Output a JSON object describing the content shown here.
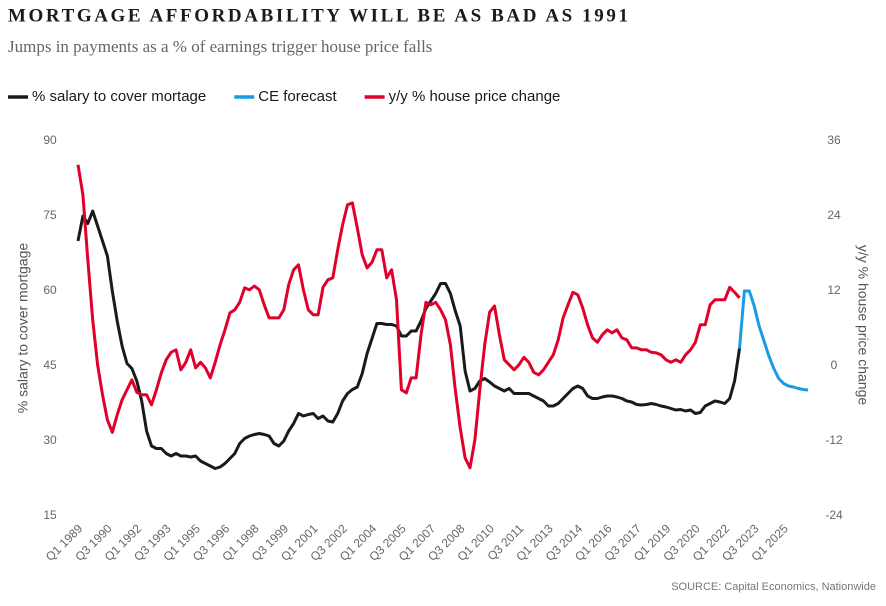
{
  "chart_data": {
    "type": "line",
    "title": "MORTGAGE AFFORDABILITY WILL BE AS BAD AS 1991",
    "subtitle": "Jumps in payments as a % of earnings trigger house price falls",
    "ylabel": "% salary to cover mortgage",
    "y2label": "y/y % house price change",
    "source": "SOURCE: Capital Economics, Nationwide",
    "categories": [
      "Q1 1989",
      null,
      null,
      null,
      null,
      null,
      "Q3 1990",
      null,
      null,
      null,
      null,
      null,
      "Q1 1992",
      null,
      null,
      null,
      null,
      null,
      "Q3 1993",
      null,
      null,
      null,
      null,
      null,
      "Q1 1995",
      null,
      null,
      null,
      null,
      null,
      "Q3 1996",
      null,
      null,
      null,
      null,
      null,
      "Q1 1998",
      null,
      null,
      null,
      null,
      null,
      "Q3 1999",
      null,
      null,
      null,
      null,
      null,
      "Q1 2001",
      null,
      null,
      null,
      null,
      null,
      "Q3 2002",
      null,
      null,
      null,
      null,
      null,
      "Q1 2004",
      null,
      null,
      null,
      null,
      null,
      "Q3 2005",
      null,
      null,
      null,
      null,
      null,
      "Q1 2007",
      null,
      null,
      null,
      null,
      null,
      "Q3 2008",
      null,
      null,
      null,
      null,
      null,
      "Q1 2010",
      null,
      null,
      null,
      null,
      null,
      "Q3 2011",
      null,
      null,
      null,
      null,
      null,
      "Q1 2013",
      null,
      null,
      null,
      null,
      null,
      "Q3 2014",
      null,
      null,
      null,
      null,
      null,
      "Q1 2016",
      null,
      null,
      null,
      null,
      null,
      "Q3 2017",
      null,
      null,
      null,
      null,
      null,
      "Q1 2019",
      null,
      null,
      null,
      null,
      null,
      "Q3 2020",
      null,
      null,
      null,
      null,
      null,
      "Q1 2022",
      null,
      null,
      null,
      null,
      null,
      "Q3 2023",
      null,
      null,
      null,
      null,
      null,
      "Q1 2025",
      null,
      null,
      null,
      null,
      null
    ],
    "series": [
      {
        "name": "% salary to cover mortage",
        "color": "#1a1a1a",
        "axis": "y",
        "values": [
          70,
          75,
          73.5,
          76,
          73,
          70,
          67,
          60,
          54,
          49,
          45.5,
          44.5,
          42,
          38,
          32,
          29,
          28.5,
          28.5,
          27.5,
          27,
          27.5,
          27,
          27,
          26.8,
          27,
          26,
          25.5,
          25,
          24.5,
          24.8,
          25.5,
          26.5,
          27.5,
          29.5,
          30.5,
          31,
          31.3,
          31.5,
          31.3,
          31,
          29.5,
          29,
          30,
          32,
          33.5,
          35.5,
          35,
          35.3,
          35.5,
          34.5,
          35,
          34,
          33.8,
          35.5,
          38,
          39.5,
          40.3,
          40.8,
          43.5,
          47.5,
          50.5,
          53.5,
          53.5,
          53.3,
          53.3,
          53,
          51,
          51,
          52,
          52,
          54,
          56.5,
          58,
          59.5,
          61.5,
          61.5,
          59.5,
          56,
          53,
          44,
          40,
          40.5,
          42,
          42.5,
          41.8,
          41,
          40.5,
          40,
          40.5,
          39.5,
          39.5,
          39.5,
          39.5,
          39,
          38.5,
          38,
          37,
          37,
          37.5,
          38.5,
          39.5,
          40.5,
          41,
          40.5,
          39,
          38.5,
          38.5,
          38.8,
          39,
          39,
          38.8,
          38.5,
          38,
          37.8,
          37.3,
          37.2,
          37.3,
          37.5,
          37.3,
          37,
          36.8,
          36.5,
          36.2,
          36.3,
          36,
          36.2,
          35.5,
          35.7,
          37,
          37.5,
          38,
          37.8,
          37.5,
          38.5,
          42,
          48.5,
          null,
          null,
          null,
          null,
          null,
          null,
          null,
          null,
          null,
          null,
          null,
          null,
          null,
          null
        ]
      },
      {
        "name": "CE forecast",
        "color": "#1a9be6",
        "axis": "y",
        "values": [
          null,
          null,
          null,
          null,
          null,
          null,
          null,
          null,
          null,
          null,
          null,
          null,
          null,
          null,
          null,
          null,
          null,
          null,
          null,
          null,
          null,
          null,
          null,
          null,
          null,
          null,
          null,
          null,
          null,
          null,
          null,
          null,
          null,
          null,
          null,
          null,
          null,
          null,
          null,
          null,
          null,
          null,
          null,
          null,
          null,
          null,
          null,
          null,
          null,
          null,
          null,
          null,
          null,
          null,
          null,
          null,
          null,
          null,
          null,
          null,
          null,
          null,
          null,
          null,
          null,
          null,
          null,
          null,
          null,
          null,
          null,
          null,
          null,
          null,
          null,
          null,
          null,
          null,
          null,
          null,
          null,
          null,
          null,
          null,
          null,
          null,
          null,
          null,
          null,
          null,
          null,
          null,
          null,
          null,
          null,
          null,
          null,
          null,
          null,
          null,
          null,
          null,
          null,
          null,
          null,
          null,
          null,
          null,
          null,
          null,
          null,
          null,
          null,
          null,
          null,
          null,
          null,
          null,
          null,
          null,
          null,
          null,
          null,
          null,
          null,
          null,
          null,
          null,
          null,
          null,
          null,
          null,
          null,
          null,
          null,
          48.5,
          60,
          60,
          57,
          53,
          50,
          47,
          44.5,
          42.5,
          41.5,
          41,
          40.8,
          40.5,
          40.3,
          40.2
        ]
      },
      {
        "name": "y/y % house price change",
        "color": "#e0002a",
        "axis": "y2",
        "values": [
          32.2,
          27.4,
          17,
          7.4,
          0.2,
          -4.6,
          -8.6,
          -10.6,
          -7.8,
          -5.4,
          -3.8,
          -2.2,
          -4.2,
          -4.6,
          -4.6,
          -6.2,
          -3.8,
          -1.1,
          1,
          2.2,
          2.6,
          -0.6,
          0.6,
          2.6,
          -0.3,
          0.6,
          -0.3,
          -1.9,
          0.6,
          3.4,
          5.8,
          8.5,
          9,
          10.2,
          12.5,
          12.2,
          12.8,
          12.2,
          9.8,
          7.7,
          7.7,
          7.7,
          9,
          13,
          15.4,
          16.2,
          12.2,
          9,
          8.2,
          8.2,
          12.6,
          13.8,
          14.1,
          18.6,
          22.6,
          25.8,
          26.1,
          22.1,
          17.8,
          15.7,
          16.6,
          18.6,
          18.6,
          14.1,
          15.4,
          10.6,
          -3.8,
          -4.3,
          -1.9,
          -1.9,
          5,
          10.2,
          9.8,
          10.2,
          9,
          7.4,
          3.4,
          -3.8,
          -9.9,
          -14.7,
          -16.3,
          -11.8,
          -3.8,
          3.4,
          8.6,
          9.6,
          5,
          1,
          0.2,
          -0.6,
          0.2,
          1.4,
          0.6,
          -1,
          -1.4,
          -0.6,
          0.6,
          1.8,
          4.2,
          7.7,
          9.8,
          11.8,
          11.4,
          9.3,
          6.6,
          4.5,
          3.8,
          5,
          5.8,
          5.3,
          5.8,
          4.5,
          4.2,
          2.9,
          2.9,
          2.6,
          2.6,
          2.2,
          2.1,
          1.8,
          1,
          0.6,
          1,
          0.6,
          1.8,
          2.6,
          3.8,
          6.6,
          6.6,
          9.8,
          10.6,
          10.6,
          10.6,
          12.6,
          11.8,
          10.9,
          null,
          null,
          null,
          null,
          null,
          null,
          null,
          null,
          null,
          null,
          null,
          null,
          null,
          null
        ]
      }
    ],
    "ylim": [
      15,
      90
    ],
    "yticks": [
      15,
      30,
      45,
      60,
      75,
      90
    ],
    "y2lim": [
      -24,
      36
    ],
    "y2ticks": [
      -24,
      -12,
      0,
      12,
      24,
      36
    ],
    "grid": false,
    "legend": "top"
  }
}
